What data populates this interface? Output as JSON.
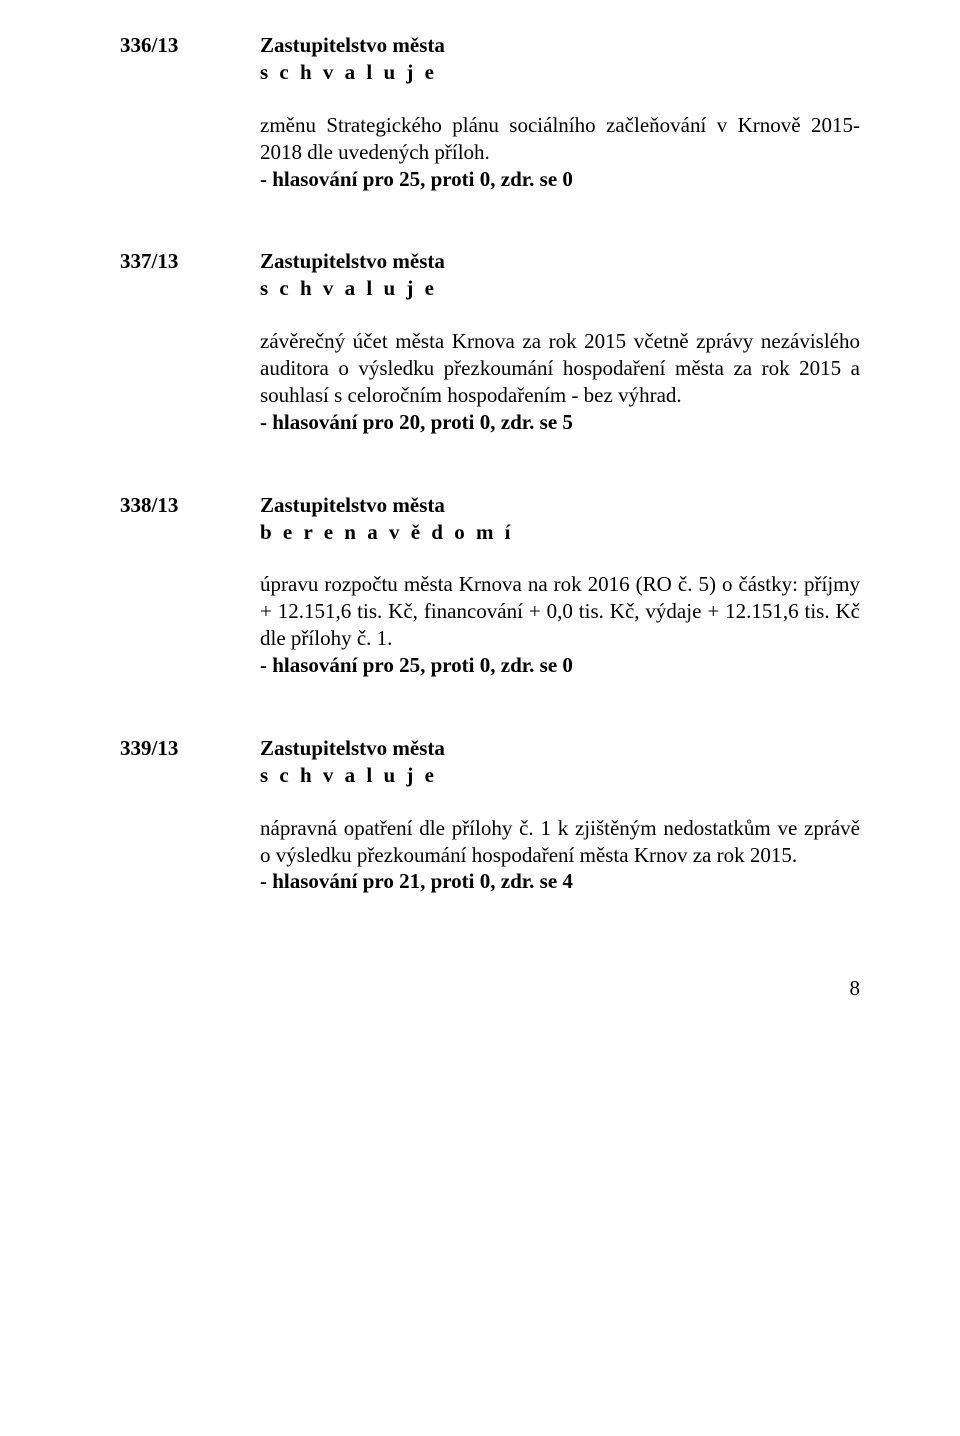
{
  "entries": [
    {
      "num": "336/13",
      "heading": "Zastupitelstvo města",
      "subheading": "s c h v a l u j e",
      "body": "změnu Strategického plánu sociálního začleňování v Krnově 2015-2018 dle uvedených příloh.",
      "vote": "- hlasování pro 25, proti 0, zdr. se 0"
    },
    {
      "num": "337/13",
      "heading": "Zastupitelstvo města",
      "subheading": "s c h v a l u j e",
      "body": "závěrečný účet města Krnova za rok 2015 včetně zprávy nezávislého auditora o výsledku přezkoumání hospodaření města za rok 2015 a souhlasí s celoročním hospodařením - bez výhrad.",
      "vote": "- hlasování pro 20, proti 0, zdr. se 5"
    },
    {
      "num": "338/13",
      "heading": "Zastupitelstvo města",
      "subheading": "b e r e  n a  v ě d o m í",
      "body": "úpravu rozpočtu města Krnova na rok 2016 (RO č. 5) o částky: příjmy + 12.151,6 tis. Kč, financování + 0,0 tis. Kč, výdaje + 12.151,6 tis. Kč dle přílohy č. 1.",
      "vote": "- hlasování pro 25, proti 0, zdr. se 0"
    },
    {
      "num": "339/13",
      "heading": "Zastupitelstvo města",
      "subheading": "s c h v a l u j e",
      "body": "nápravná opatření dle přílohy č. 1 k zjištěným nedostatkům ve zprávě o výsledku přezkoumání hospodaření města Krnov za rok 2015.",
      "vote": "- hlasování pro 21, proti 0, zdr. se 4"
    }
  ],
  "pagenum": "8"
}
